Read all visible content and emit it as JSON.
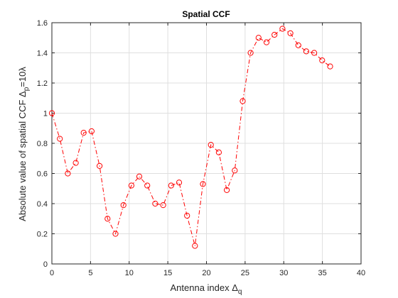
{
  "chart_data": {
    "type": "line",
    "title": "Spatial CCF",
    "xlabel": {
      "prefix": "Antenna index Δ",
      "subscript": "q"
    },
    "ylabel": {
      "prefix": "Absolute value of spatial CCF  Δ",
      "subscript": "p",
      "suffix": "=10λ"
    },
    "xlim": [
      0,
      40
    ],
    "ylim": [
      0,
      1.6
    ],
    "xticks": [
      0,
      5,
      10,
      15,
      20,
      25,
      30,
      35,
      40
    ],
    "yticks": [
      0,
      0.2,
      0.4,
      0.6,
      0.8,
      1,
      1.2,
      1.4,
      1.6
    ],
    "grid": true,
    "series": [
      {
        "color": "#ff0000",
        "line_style": "dash-dot",
        "marker": "circle",
        "x": [
          0,
          1.03,
          2.06,
          3.09,
          4.11,
          5.14,
          6.17,
          7.2,
          8.23,
          9.26,
          10.29,
          11.31,
          12.34,
          13.37,
          14.4,
          15.43,
          16.46,
          17.49,
          18.51,
          19.54,
          20.57,
          21.6,
          22.63,
          23.66,
          24.69,
          25.71,
          26.74,
          27.77,
          28.8,
          29.83,
          30.86,
          31.89,
          32.91,
          33.94,
          34.97,
          36.0
        ],
        "y": [
          1.0,
          0.83,
          0.6,
          0.67,
          0.87,
          0.88,
          0.65,
          0.3,
          0.2,
          0.39,
          0.52,
          0.58,
          0.52,
          0.4,
          0.39,
          0.52,
          0.54,
          0.32,
          0.12,
          0.53,
          0.79,
          0.74,
          0.49,
          0.62,
          1.08,
          1.4,
          1.5,
          1.47,
          1.52,
          1.56,
          1.53,
          1.45,
          1.41,
          1.4,
          1.35,
          1.31
        ]
      }
    ]
  }
}
